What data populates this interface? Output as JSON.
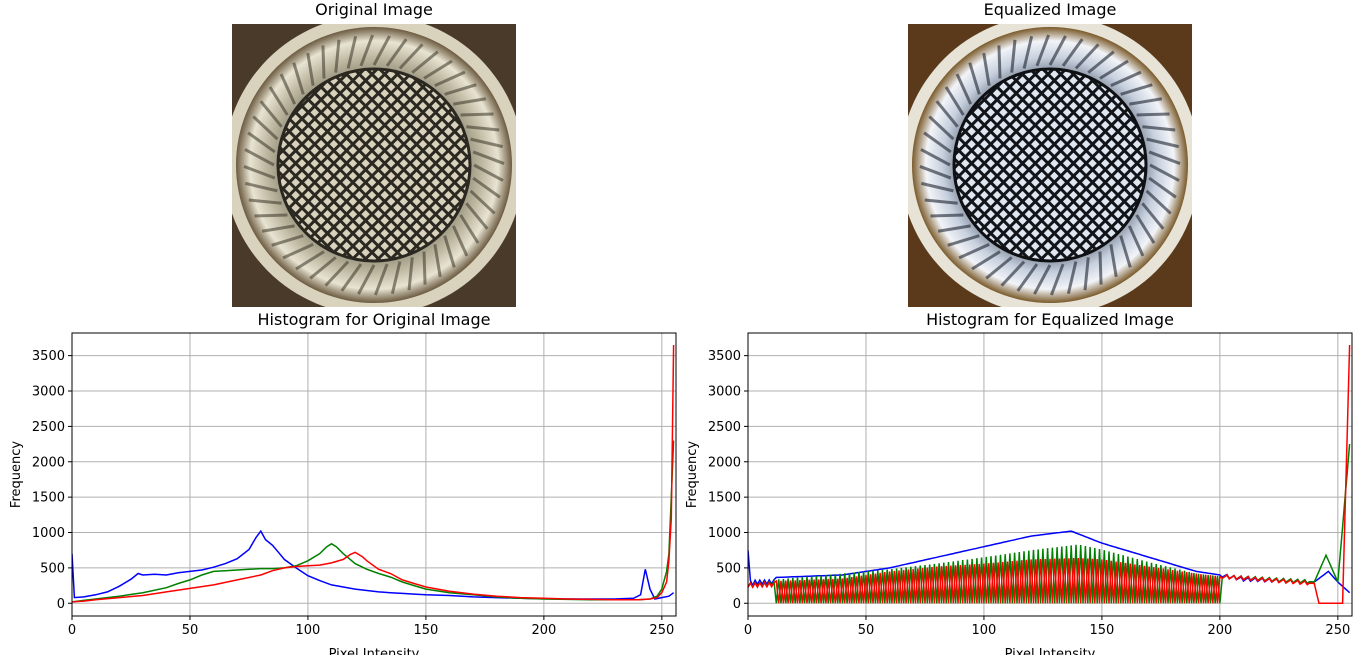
{
  "panels": {
    "original_title": "Original Image",
    "equalized_title": "Equalized Image"
  },
  "chart_data": [
    {
      "type": "line",
      "title": "Histogram for Original Image",
      "xlabel": "Pixel Intensity",
      "ylabel": "Frequency",
      "xlim": [
        0,
        256
      ],
      "ylim": [
        -180,
        3820
      ],
      "xticks": [
        0,
        50,
        100,
        150,
        200,
        250
      ],
      "yticks": [
        0,
        500,
        1000,
        1500,
        2000,
        2500,
        3000,
        3500
      ],
      "grid": true,
      "series": [
        {
          "color": "#0000ff",
          "points": [
            [
              0,
              700
            ],
            [
              1,
              80
            ],
            [
              5,
              90
            ],
            [
              10,
              120
            ],
            [
              15,
              160
            ],
            [
              20,
              240
            ],
            [
              25,
              340
            ],
            [
              28,
              420
            ],
            [
              30,
              400
            ],
            [
              35,
              410
            ],
            [
              40,
              400
            ],
            [
              45,
              430
            ],
            [
              50,
              450
            ],
            [
              55,
              470
            ],
            [
              60,
              510
            ],
            [
              65,
              560
            ],
            [
              70,
              630
            ],
            [
              75,
              760
            ],
            [
              78,
              930
            ],
            [
              80,
              1020
            ],
            [
              82,
              900
            ],
            [
              85,
              820
            ],
            [
              88,
              700
            ],
            [
              90,
              620
            ],
            [
              95,
              500
            ],
            [
              100,
              390
            ],
            [
              105,
              320
            ],
            [
              110,
              260
            ],
            [
              115,
              230
            ],
            [
              120,
              200
            ],
            [
              125,
              180
            ],
            [
              130,
              160
            ],
            [
              135,
              150
            ],
            [
              140,
              140
            ],
            [
              145,
              130
            ],
            [
              150,
              120
            ],
            [
              160,
              110
            ],
            [
              170,
              90
            ],
            [
              180,
              80
            ],
            [
              190,
              70
            ],
            [
              200,
              65
            ],
            [
              210,
              60
            ],
            [
              220,
              60
            ],
            [
              230,
              60
            ],
            [
              238,
              70
            ],
            [
              241,
              120
            ],
            [
              243,
              480
            ],
            [
              245,
              200
            ],
            [
              247,
              60
            ],
            [
              250,
              80
            ],
            [
              253,
              100
            ],
            [
              255,
              150
            ]
          ]
        },
        {
          "color": "#008000",
          "points": [
            [
              0,
              20
            ],
            [
              5,
              40
            ],
            [
              10,
              60
            ],
            [
              20,
              100
            ],
            [
              30,
              150
            ],
            [
              40,
              220
            ],
            [
              45,
              280
            ],
            [
              50,
              330
            ],
            [
              55,
              400
            ],
            [
              60,
              450
            ],
            [
              65,
              460
            ],
            [
              70,
              470
            ],
            [
              75,
              480
            ],
            [
              80,
              490
            ],
            [
              85,
              490
            ],
            [
              90,
              500
            ],
            [
              95,
              530
            ],
            [
              100,
              600
            ],
            [
              105,
              700
            ],
            [
              108,
              800
            ],
            [
              110,
              840
            ],
            [
              112,
              800
            ],
            [
              115,
              700
            ],
            [
              120,
              560
            ],
            [
              125,
              480
            ],
            [
              130,
              420
            ],
            [
              135,
              370
            ],
            [
              140,
              300
            ],
            [
              145,
              250
            ],
            [
              150,
              200
            ],
            [
              160,
              150
            ],
            [
              170,
              120
            ],
            [
              180,
              90
            ],
            [
              190,
              70
            ],
            [
              200,
              60
            ],
            [
              210,
              55
            ],
            [
              220,
              50
            ],
            [
              230,
              50
            ],
            [
              240,
              50
            ],
            [
              245,
              60
            ],
            [
              248,
              100
            ],
            [
              250,
              200
            ],
            [
              252,
              450
            ],
            [
              253,
              700
            ],
            [
              254,
              1500
            ],
            [
              255,
              2300
            ]
          ]
        },
        {
          "color": "#ff0000",
          "points": [
            [
              0,
              20
            ],
            [
              5,
              30
            ],
            [
              10,
              50
            ],
            [
              20,
              80
            ],
            [
              30,
              110
            ],
            [
              40,
              160
            ],
            [
              50,
              210
            ],
            [
              60,
              260
            ],
            [
              70,
              330
            ],
            [
              80,
              400
            ],
            [
              85,
              460
            ],
            [
              90,
              500
            ],
            [
              95,
              520
            ],
            [
              100,
              530
            ],
            [
              105,
              540
            ],
            [
              110,
              570
            ],
            [
              115,
              620
            ],
            [
              118,
              690
            ],
            [
              120,
              720
            ],
            [
              123,
              660
            ],
            [
              125,
              600
            ],
            [
              130,
              480
            ],
            [
              135,
              420
            ],
            [
              140,
              330
            ],
            [
              145,
              280
            ],
            [
              150,
              230
            ],
            [
              160,
              170
            ],
            [
              170,
              130
            ],
            [
              180,
              100
            ],
            [
              190,
              80
            ],
            [
              200,
              70
            ],
            [
              210,
              60
            ],
            [
              220,
              55
            ],
            [
              230,
              50
            ],
            [
              240,
              50
            ],
            [
              245,
              60
            ],
            [
              248,
              80
            ],
            [
              250,
              150
            ],
            [
              252,
              300
            ],
            [
              253,
              600
            ],
            [
              254,
              1200
            ],
            [
              255,
              3650
            ]
          ]
        }
      ]
    },
    {
      "type": "line",
      "title": "Histogram for Equalized Image",
      "xlabel": "Pixel Intensity",
      "ylabel": "Frequency",
      "xlim": [
        0,
        256
      ],
      "ylim": [
        -180,
        3820
      ],
      "xticks": [
        0,
        50,
        100,
        150,
        200,
        250
      ],
      "yticks": [
        0,
        500,
        1000,
        1500,
        2000,
        2500,
        3000,
        3500
      ],
      "grid": true,
      "series": [
        {
          "color": "#0000ff",
          "generator": "equalized",
          "envelope": [
            [
              0,
              350
            ],
            [
              40,
              400
            ],
            [
              60,
              500
            ],
            [
              80,
              650
            ],
            [
              100,
              800
            ],
            [
              120,
              950
            ],
            [
              137,
              1020
            ],
            [
              150,
              850
            ],
            [
              170,
              650
            ],
            [
              190,
              450
            ],
            [
              200,
              400
            ],
            [
              210,
              340
            ],
            [
              240,
              300
            ],
            [
              246,
              450
            ],
            [
              250,
              300
            ],
            [
              255,
              150
            ]
          ],
          "spike_start": 0,
          "spike_step": 1,
          "end_values": [
            [
              0,
              750
            ],
            [
              2,
              250
            ],
            [
              255,
              150
            ]
          ]
        },
        {
          "color": "#008000",
          "generator": "equalized",
          "envelope": [
            [
              0,
              300
            ],
            [
              40,
              420
            ],
            [
              60,
              480
            ],
            [
              80,
              560
            ],
            [
              100,
              650
            ],
            [
              120,
              750
            ],
            [
              140,
              830
            ],
            [
              150,
              760
            ],
            [
              170,
              580
            ],
            [
              190,
              420
            ],
            [
              200,
              380
            ],
            [
              240,
              300
            ],
            [
              245,
              680
            ],
            [
              250,
              300
            ],
            [
              255,
              2250
            ]
          ],
          "spike_start": 1,
          "spike_step": 2
        },
        {
          "color": "#ff0000",
          "generator": "equalized",
          "envelope": [
            [
              0,
              300
            ],
            [
              40,
              350
            ],
            [
              60,
              450
            ],
            [
              80,
              520
            ],
            [
              100,
              560
            ],
            [
              120,
              620
            ],
            [
              140,
              640
            ],
            [
              150,
              620
            ],
            [
              170,
              520
            ],
            [
              190,
              420
            ],
            [
              200,
              380
            ],
            [
              240,
              280
            ],
            [
              242,
              0
            ],
            [
              252,
              0
            ],
            [
              255,
              3650
            ]
          ],
          "spike_start": 0,
          "spike_step": 2
        }
      ]
    }
  ]
}
